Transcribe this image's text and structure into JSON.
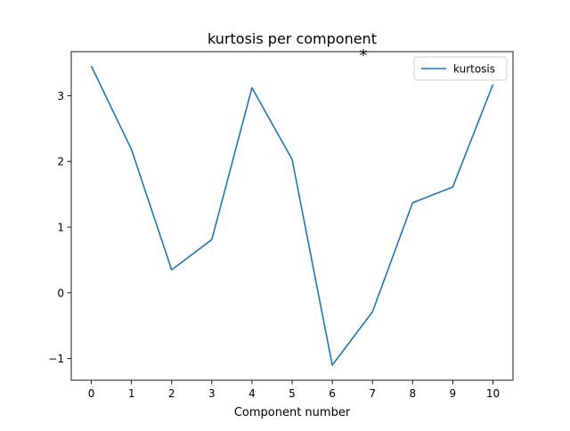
{
  "chart_data": {
    "type": "line",
    "title": "kurtosis per component",
    "annotation": "*",
    "xlabel": "Component number",
    "ylabel": "",
    "x": [
      0,
      1,
      2,
      3,
      4,
      5,
      6,
      7,
      8,
      9,
      10
    ],
    "xticks": [
      "0",
      "1",
      "2",
      "3",
      "4",
      "5",
      "6",
      "7",
      "8",
      "9",
      "10"
    ],
    "yticks": [
      {
        "value": -1,
        "label": "−1"
      },
      {
        "value": 0,
        "label": "0"
      },
      {
        "value": 1,
        "label": "1"
      },
      {
        "value": 2,
        "label": "2"
      },
      {
        "value": 3,
        "label": "3"
      }
    ],
    "xlim": [
      -0.5,
      10.5
    ],
    "ylim": [
      -1.33,
      3.67
    ],
    "grid": false,
    "legend_position": "top-right",
    "series": [
      {
        "name": "kurtosis",
        "color": "#1f77b4",
        "values": [
          3.45,
          2.18,
          0.35,
          0.81,
          3.12,
          2.03,
          -1.1,
          -0.29,
          1.37,
          1.61,
          3.17
        ]
      }
    ]
  }
}
